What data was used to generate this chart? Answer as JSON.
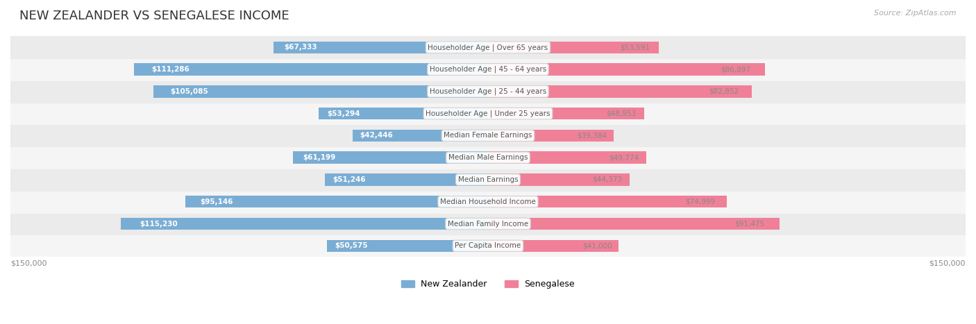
{
  "title": "NEW ZEALANDER VS SENEGALESE INCOME",
  "source": "Source: ZipAtlas.com",
  "categories": [
    "Per Capita Income",
    "Median Family Income",
    "Median Household Income",
    "Median Earnings",
    "Median Male Earnings",
    "Median Female Earnings",
    "Householder Age | Under 25 years",
    "Householder Age | 25 - 44 years",
    "Householder Age | 45 - 64 years",
    "Householder Age | Over 65 years"
  ],
  "nz_values": [
    50575,
    115230,
    95146,
    51246,
    61199,
    42446,
    53294,
    105085,
    111286,
    67333
  ],
  "sen_values": [
    41000,
    91475,
    74999,
    44373,
    49774,
    39384,
    48953,
    82852,
    86897,
    53591
  ],
  "nz_labels": [
    "$50,575",
    "$115,230",
    "$95,146",
    "$51,246",
    "$61,199",
    "$42,446",
    "$53,294",
    "$105,085",
    "$111,286",
    "$67,333"
  ],
  "sen_labels": [
    "$41,000",
    "$91,475",
    "$74,999",
    "$44,373",
    "$49,774",
    "$39,384",
    "$48,953",
    "$82,852",
    "$86,897",
    "$53,591"
  ],
  "max_val": 150000,
  "nz_color": "#7aadd4",
  "sen_color": "#f08098",
  "nz_label_color_inside": "#ffffff",
  "nz_label_color_outside": "#888888",
  "sen_label_color_inside": "#888888",
  "row_bg_odd": "#f5f5f5",
  "row_bg_even": "#ebebeb",
  "bar_height": 0.55,
  "legend_nz": "New Zealander",
  "legend_sen": "Senegalese",
  "axis_label_left": "$150,000",
  "axis_label_right": "$150,000",
  "inside_label_threshold": 20000
}
